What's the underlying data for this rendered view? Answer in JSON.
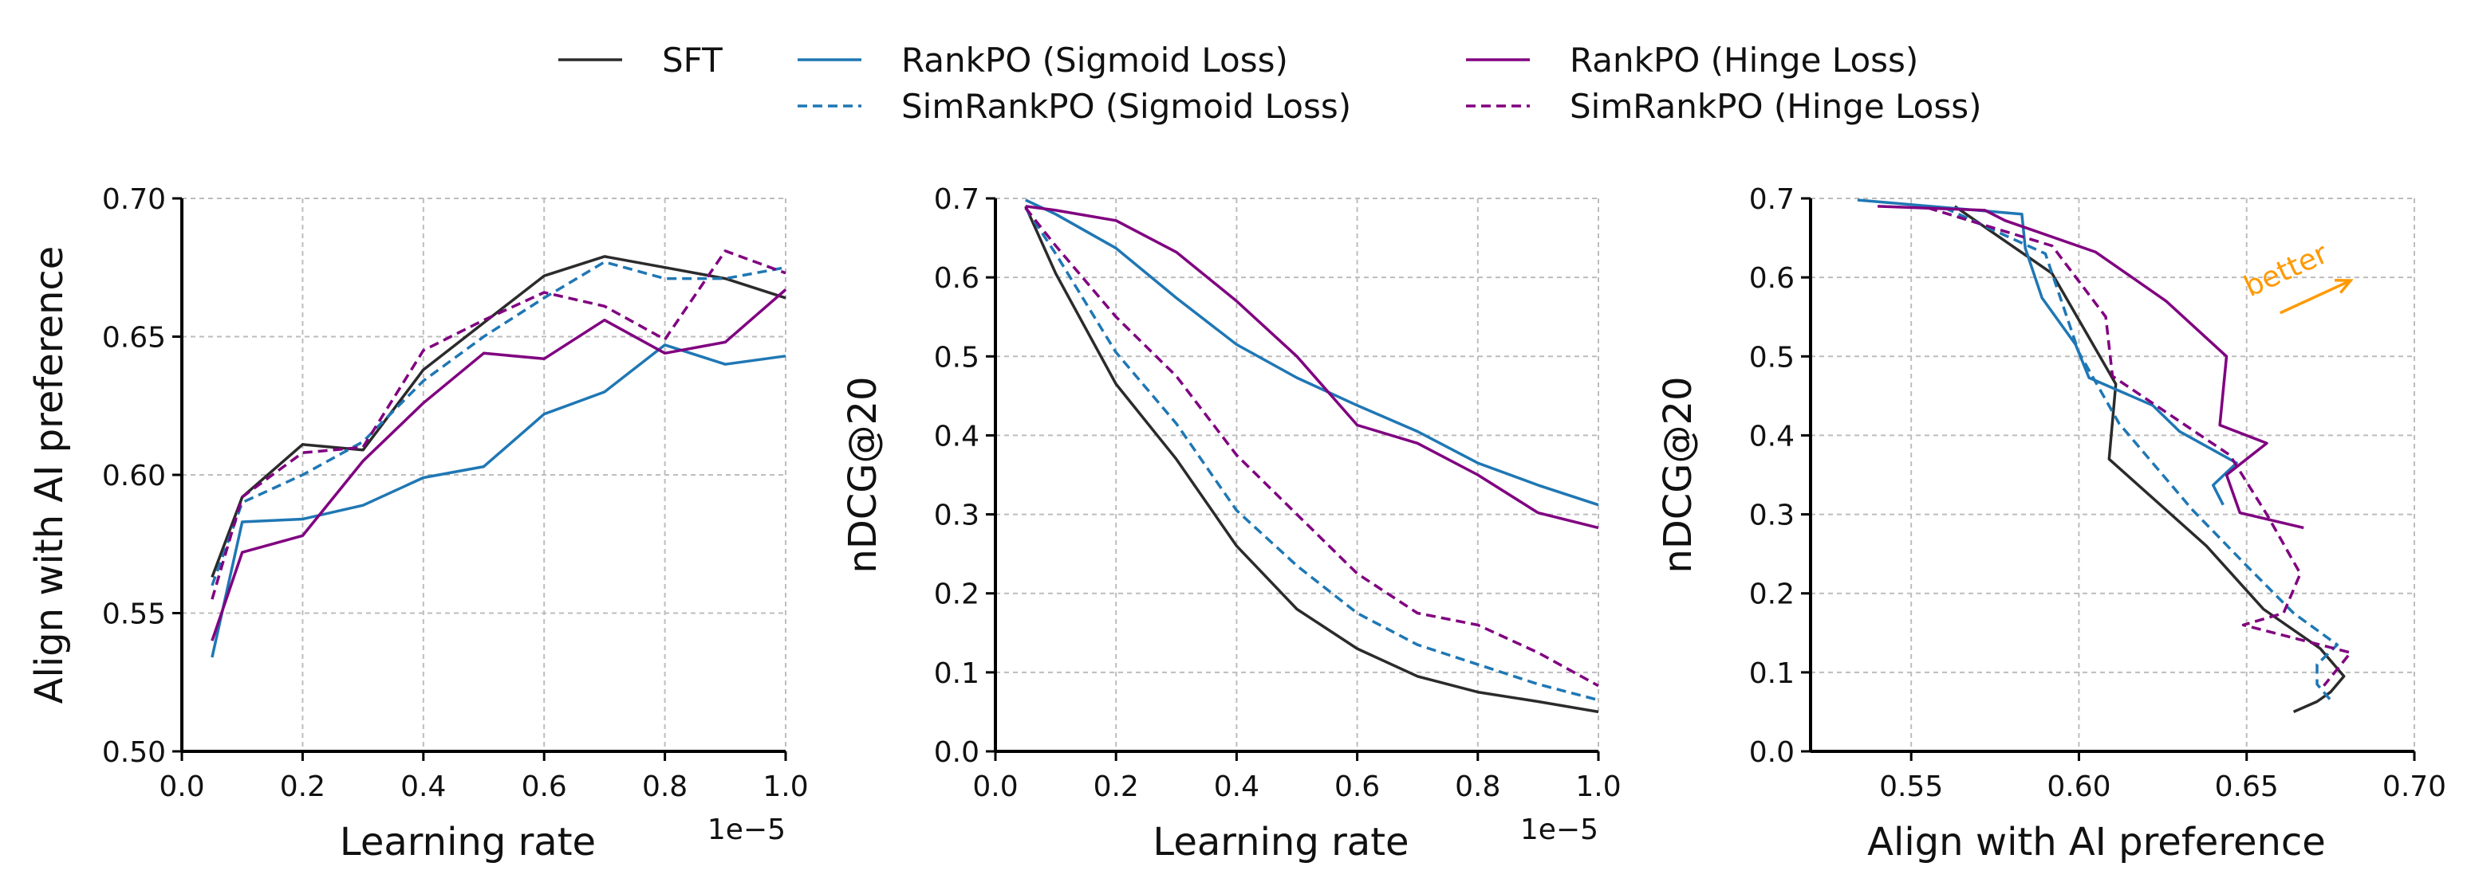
{
  "legend": [
    {
      "label": "SFT",
      "color": "#2b2b2b",
      "dash": "solid"
    },
    {
      "label": "RankPO (Sigmoid Loss)",
      "color": "#1f77b4",
      "dash": "solid"
    },
    {
      "label": "SimRankPO (Sigmoid Loss)",
      "color": "#1f77b4",
      "dash": "dashed"
    },
    {
      "label": "RankPO (Hinge Loss)",
      "color": "#800080",
      "dash": "solid"
    },
    {
      "label": "SimRankPO (Hinge Loss)",
      "color": "#800080",
      "dash": "dashed"
    }
  ],
  "chart_data": [
    {
      "type": "line",
      "xlabel": "Learning rate",
      "ylabel": "Align with AI preference",
      "x_offset_text": "1e−5",
      "xlim": [
        0.0,
        1.0
      ],
      "ylim": [
        0.5,
        0.7
      ],
      "xticks": [
        "0.0",
        "0.2",
        "0.4",
        "0.6",
        "0.8",
        "1.0"
      ],
      "yticks": [
        "0.50",
        "0.55",
        "0.60",
        "0.65",
        "0.70"
      ],
      "grid": true,
      "x": [
        0.05,
        0.1,
        0.2,
        0.3,
        0.4,
        0.5,
        0.6,
        0.7,
        0.8,
        0.9,
        1.0
      ],
      "series": [
        {
          "name": "SFT",
          "color": "#2b2b2b",
          "dash": "solid",
          "values": [
            0.563,
            0.592,
            0.611,
            0.609,
            0.638,
            0.655,
            0.672,
            0.679,
            0.675,
            0.671,
            0.664
          ]
        },
        {
          "name": "RankPO (Sigmoid Loss)",
          "color": "#1f77b4",
          "dash": "solid",
          "values": [
            0.534,
            0.583,
            0.584,
            0.589,
            0.599,
            0.603,
            0.622,
            0.63,
            0.647,
            0.64,
            0.643
          ]
        },
        {
          "name": "SimRankPO (Sigmoid Loss)",
          "color": "#1f77b4",
          "dash": "dashed",
          "values": [
            0.56,
            0.59,
            0.6,
            0.612,
            0.634,
            0.65,
            0.664,
            0.677,
            0.671,
            0.671,
            0.675
          ]
        },
        {
          "name": "RankPO (Hinge Loss)",
          "color": "#800080",
          "dash": "solid",
          "values": [
            0.54,
            0.572,
            0.578,
            0.605,
            0.626,
            0.644,
            0.642,
            0.656,
            0.644,
            0.648,
            0.667
          ]
        },
        {
          "name": "SimRankPO (Hinge Loss)",
          "color": "#800080",
          "dash": "dashed",
          "values": [
            0.555,
            0.592,
            0.608,
            0.61,
            0.645,
            0.656,
            0.666,
            0.661,
            0.649,
            0.681,
            0.673
          ]
        }
      ]
    },
    {
      "type": "line",
      "xlabel": "Learning rate",
      "ylabel": "nDCG@20",
      "x_offset_text": "1e−5",
      "xlim": [
        0.0,
        1.0
      ],
      "ylim": [
        0.0,
        0.7
      ],
      "xticks": [
        "0.0",
        "0.2",
        "0.4",
        "0.6",
        "0.8",
        "1.0"
      ],
      "yticks": [
        "0.0",
        "0.1",
        "0.2",
        "0.3",
        "0.4",
        "0.5",
        "0.6",
        "0.7"
      ],
      "grid": true,
      "x": [
        0.05,
        0.1,
        0.2,
        0.3,
        0.4,
        0.5,
        0.6,
        0.7,
        0.8,
        0.9,
        1.0
      ],
      "series": [
        {
          "name": "SFT",
          "color": "#2b2b2b",
          "dash": "solid",
          "values": [
            0.69,
            0.605,
            0.465,
            0.37,
            0.26,
            0.18,
            0.13,
            0.095,
            0.075,
            0.063,
            0.05
          ]
        },
        {
          "name": "RankPO (Sigmoid Loss)",
          "color": "#1f77b4",
          "dash": "solid",
          "values": [
            0.698,
            0.68,
            0.637,
            0.574,
            0.515,
            0.473,
            0.438,
            0.405,
            0.365,
            0.337,
            0.312
          ]
        },
        {
          "name": "SimRankPO (Sigmoid Loss)",
          "color": "#1f77b4",
          "dash": "dashed",
          "values": [
            0.688,
            0.63,
            0.505,
            0.415,
            0.305,
            0.235,
            0.175,
            0.135,
            0.11,
            0.085,
            0.065
          ]
        },
        {
          "name": "RankPO (Hinge Loss)",
          "color": "#800080",
          "dash": "solid",
          "values": [
            0.69,
            0.685,
            0.672,
            0.632,
            0.57,
            0.5,
            0.413,
            0.39,
            0.35,
            0.302,
            0.283
          ]
        },
        {
          "name": "SimRankPO (Hinge Loss)",
          "color": "#800080",
          "dash": "dashed",
          "values": [
            0.688,
            0.64,
            0.55,
            0.475,
            0.375,
            0.3,
            0.225,
            0.175,
            0.16,
            0.125,
            0.083
          ]
        }
      ]
    },
    {
      "type": "line",
      "xlabel": "Align with AI preference",
      "ylabel": "nDCG@20",
      "xlim": [
        0.52,
        0.7
      ],
      "ylim": [
        0.0,
        0.7
      ],
      "xticks": [
        "0.55",
        "0.60",
        "0.65",
        "0.70"
      ],
      "yticks": [
        "0.0",
        "0.1",
        "0.2",
        "0.3",
        "0.4",
        "0.5",
        "0.6",
        "0.7"
      ],
      "grid": true,
      "annotation": {
        "text": "better",
        "color": "#ff9900"
      },
      "series": [
        {
          "name": "SFT",
          "color": "#2b2b2b",
          "dash": "solid",
          "x": [
            0.563,
            0.592,
            0.611,
            0.609,
            0.638,
            0.655,
            0.672,
            0.679,
            0.675,
            0.671,
            0.664
          ],
          "values": [
            0.69,
            0.605,
            0.465,
            0.37,
            0.26,
            0.18,
            0.13,
            0.095,
            0.075,
            0.063,
            0.05
          ]
        },
        {
          "name": "RankPO (Sigmoid Loss)",
          "color": "#1f77b4",
          "dash": "solid",
          "x": [
            0.534,
            0.583,
            0.584,
            0.589,
            0.599,
            0.603,
            0.622,
            0.63,
            0.647,
            0.64,
            0.643
          ],
          "values": [
            0.698,
            0.68,
            0.637,
            0.574,
            0.515,
            0.473,
            0.438,
            0.405,
            0.365,
            0.337,
            0.312
          ]
        },
        {
          "name": "SimRankPO (Sigmoid Loss)",
          "color": "#1f77b4",
          "dash": "dashed",
          "x": [
            0.56,
            0.59,
            0.6,
            0.612,
            0.634,
            0.65,
            0.664,
            0.677,
            0.671,
            0.671,
            0.675
          ],
          "values": [
            0.688,
            0.63,
            0.505,
            0.415,
            0.305,
            0.235,
            0.175,
            0.135,
            0.11,
            0.085,
            0.065
          ]
        },
        {
          "name": "RankPO (Hinge Loss)",
          "color": "#800080",
          "dash": "solid",
          "x": [
            0.54,
            0.572,
            0.578,
            0.605,
            0.626,
            0.644,
            0.642,
            0.656,
            0.644,
            0.648,
            0.667
          ],
          "values": [
            0.69,
            0.685,
            0.672,
            0.632,
            0.57,
            0.5,
            0.413,
            0.39,
            0.35,
            0.302,
            0.283
          ]
        },
        {
          "name": "SimRankPO (Hinge Loss)",
          "color": "#800080",
          "dash": "dashed",
          "x": [
            0.555,
            0.592,
            0.608,
            0.61,
            0.645,
            0.656,
            0.666,
            0.661,
            0.649,
            0.681,
            0.673
          ],
          "values": [
            0.688,
            0.64,
            0.55,
            0.475,
            0.375,
            0.3,
            0.225,
            0.175,
            0.16,
            0.125,
            0.083
          ]
        }
      ]
    }
  ]
}
